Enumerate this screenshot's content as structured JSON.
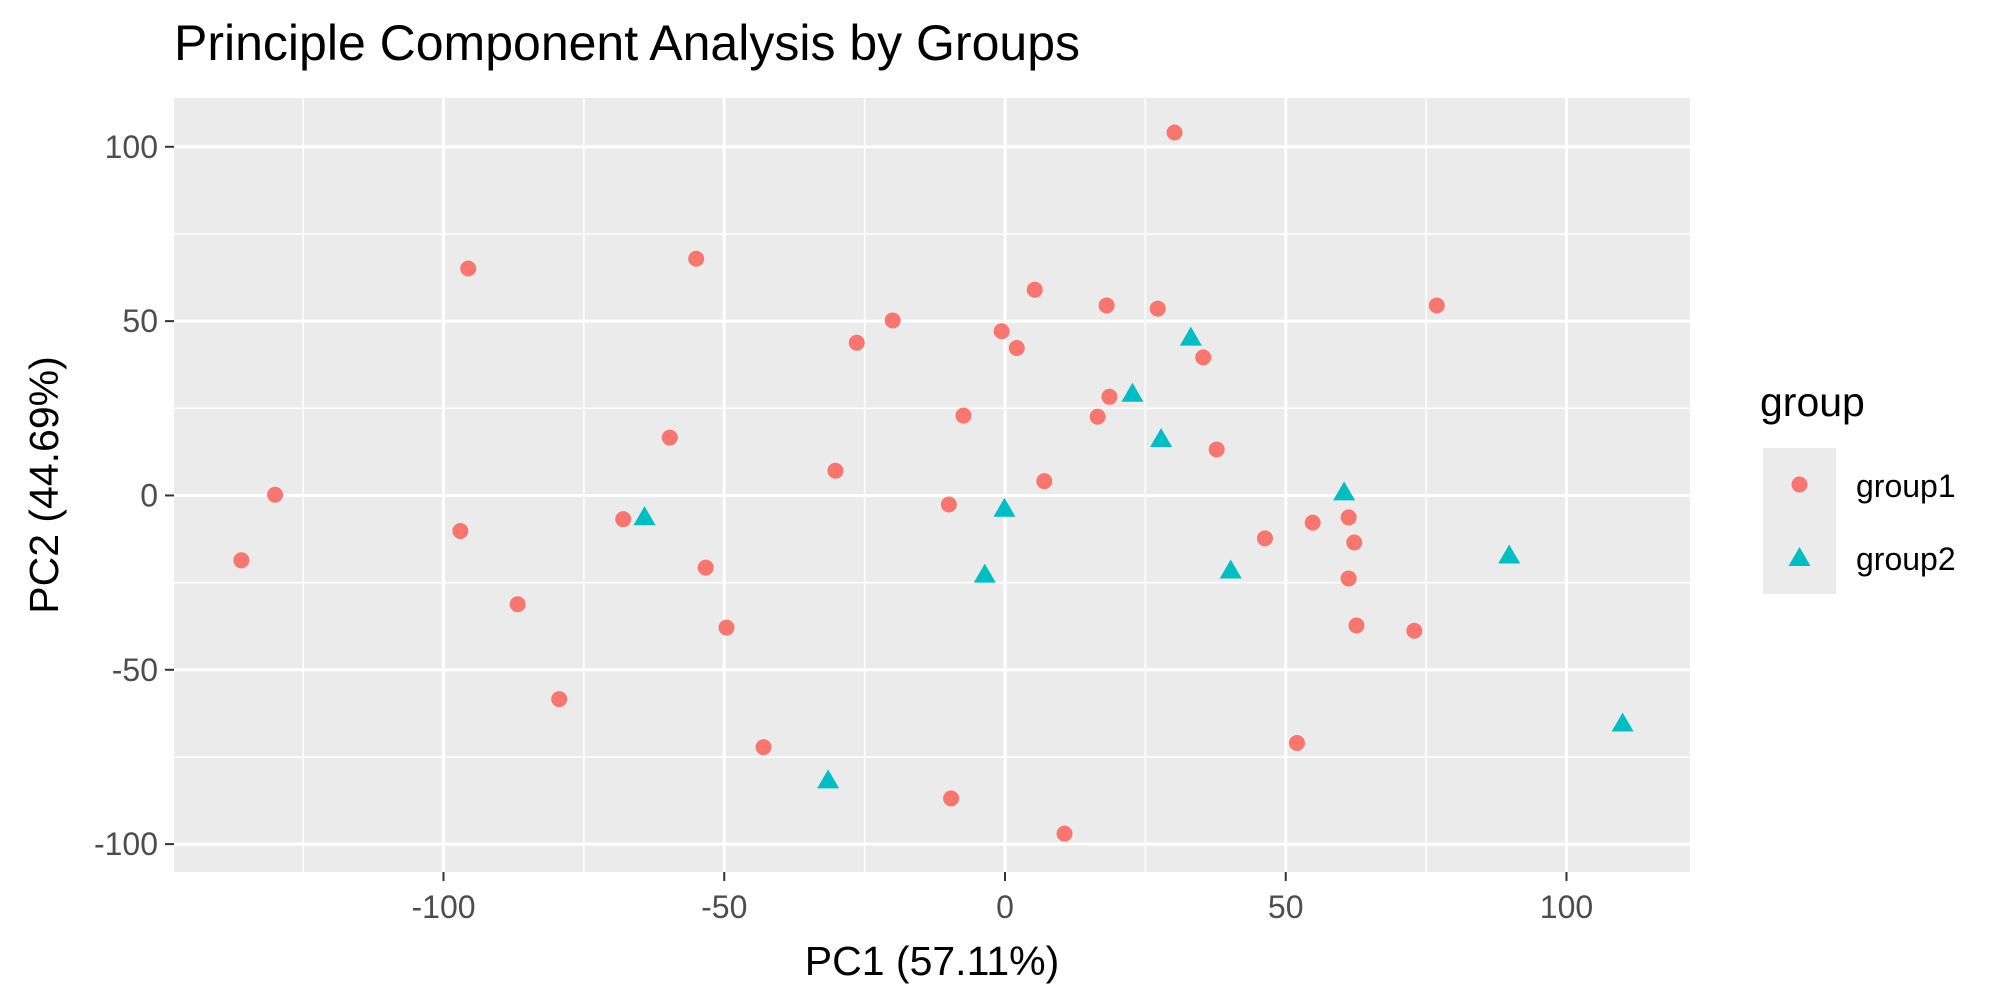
{
  "chart_data": {
    "type": "scatter",
    "title": "Principle Component Analysis by Groups",
    "xlabel": "PC1 (57.11%)",
    "ylabel": "PC2 (44.69%)",
    "xlim": [
      -148,
      122
    ],
    "ylim": [
      -108,
      114
    ],
    "x_ticks": [
      -100,
      -50,
      0,
      50,
      100
    ],
    "y_ticks": [
      -100,
      -50,
      0,
      50,
      100
    ],
    "x_tick_labels": [
      "-100",
      "-50",
      "0",
      "50",
      "100"
    ],
    "y_tick_labels": [
      "-100",
      "-50",
      "0",
      "50",
      "100"
    ],
    "grid": true,
    "legend": {
      "title": "group",
      "position": "right",
      "entries": [
        {
          "label": "group1",
          "shape": "circle",
          "color": "#F8766D"
        },
        {
          "label": "group2",
          "shape": "triangle",
          "color": "#00BFC4"
        }
      ]
    },
    "colors": {
      "panel_background": "#EBEBEB",
      "grid_major": "#FFFFFF",
      "axis_text": "#4D4D4D",
      "tick": "#333333",
      "group1": "#F8766D",
      "group2": "#00BFC4"
    },
    "series": [
      {
        "name": "group1",
        "shape": "circle",
        "points": [
          {
            "x": 30.2,
            "y": 104.1
          },
          {
            "x": -95.6,
            "y": 65.1
          },
          {
            "x": -55.0,
            "y": 67.9
          },
          {
            "x": 5.3,
            "y": 59.0
          },
          {
            "x": 18.1,
            "y": 54.5
          },
          {
            "x": 27.2,
            "y": 53.6
          },
          {
            "x": 76.9,
            "y": 54.5
          },
          {
            "x": -20.0,
            "y": 50.2
          },
          {
            "x": -0.6,
            "y": 47.1
          },
          {
            "x": -26.4,
            "y": 43.8
          },
          {
            "x": 2.1,
            "y": 42.3
          },
          {
            "x": 35.3,
            "y": 39.6
          },
          {
            "x": 18.6,
            "y": 28.3
          },
          {
            "x": -7.4,
            "y": 22.9
          },
          {
            "x": 16.5,
            "y": 22.6
          },
          {
            "x": -59.7,
            "y": 16.6
          },
          {
            "x": 37.7,
            "y": 13.2
          },
          {
            "x": -30.2,
            "y": 7.1
          },
          {
            "x": 7.0,
            "y": 4.1
          },
          {
            "x": -130.0,
            "y": 0.2
          },
          {
            "x": -97.0,
            "y": -10.2
          },
          {
            "x": -10.0,
            "y": -2.6
          },
          {
            "x": -68.0,
            "y": -6.8
          },
          {
            "x": 54.8,
            "y": -7.8
          },
          {
            "x": 61.2,
            "y": -6.3
          },
          {
            "x": 46.3,
            "y": -12.3
          },
          {
            "x": 62.2,
            "y": -13.5
          },
          {
            "x": -136.0,
            "y": -18.6
          },
          {
            "x": -53.3,
            "y": -20.7
          },
          {
            "x": 61.2,
            "y": -23.8
          },
          {
            "x": -86.8,
            "y": -31.2
          },
          {
            "x": -49.6,
            "y": -37.9
          },
          {
            "x": 62.6,
            "y": -37.3
          },
          {
            "x": 72.9,
            "y": -38.8
          },
          {
            "x": -79.4,
            "y": -58.4
          },
          {
            "x": 52.0,
            "y": -71.0
          },
          {
            "x": -43.0,
            "y": -72.2
          },
          {
            "x": -9.6,
            "y": -86.9
          },
          {
            "x": 10.6,
            "y": -97.0
          }
        ]
      },
      {
        "name": "group2",
        "shape": "triangle",
        "points": [
          {
            "x": 33.1,
            "y": 45.0
          },
          {
            "x": 22.7,
            "y": 28.9
          },
          {
            "x": 27.8,
            "y": 15.9
          },
          {
            "x": 60.4,
            "y": 0.6
          },
          {
            "x": -64.2,
            "y": -6.5
          },
          {
            "x": -0.1,
            "y": -4.1
          },
          {
            "x": -3.6,
            "y": -23.0
          },
          {
            "x": 40.2,
            "y": -21.8
          },
          {
            "x": 89.8,
            "y": -17.5
          },
          {
            "x": -31.5,
            "y": -82.0
          },
          {
            "x": 110.0,
            "y": -65.7
          }
        ]
      }
    ]
  }
}
